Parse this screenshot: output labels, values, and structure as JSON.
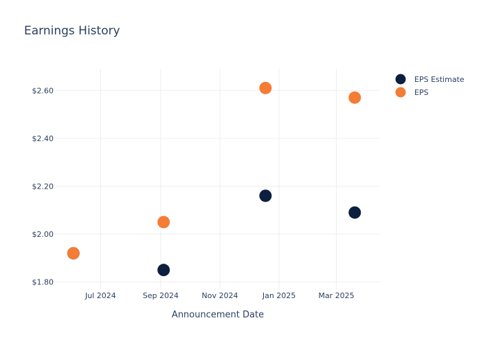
{
  "chart_data": {
    "type": "scatter",
    "title": "Earnings History",
    "xlabel": "Announcement Date",
    "ylabel": "",
    "x_ticks": [
      "2024-07-01",
      "2024-09-01",
      "2024-11-01",
      "2025-01-01",
      "2025-03-01"
    ],
    "x_tick_labels": [
      "Jul 2024",
      "Sep 2024",
      "Nov 2024",
      "Jan 2025",
      "Mar 2025"
    ],
    "xlim": [
      "2024-05-15",
      "2025-04-15"
    ],
    "y_ticks": [
      1.8,
      2.0,
      2.2,
      2.4,
      2.6
    ],
    "y_tick_labels": [
      "$1.80",
      "$2.00",
      "$2.20",
      "$2.40",
      "$2.60"
    ],
    "ylim": [
      1.77,
      2.69
    ],
    "grid": true,
    "legend_position": "top-right",
    "series": [
      {
        "name": "EPS Estimate",
        "color": "#0d1f3f",
        "x": [
          "2024-06-03",
          "2024-09-04",
          "2024-12-18",
          "2025-03-20"
        ],
        "y": [
          1.92,
          1.85,
          2.16,
          2.09
        ]
      },
      {
        "name": "EPS",
        "color": "#f47c35",
        "x": [
          "2024-06-03",
          "2024-09-04",
          "2024-12-18",
          "2025-03-20"
        ],
        "y": [
          1.92,
          2.05,
          2.61,
          2.57
        ]
      }
    ]
  }
}
